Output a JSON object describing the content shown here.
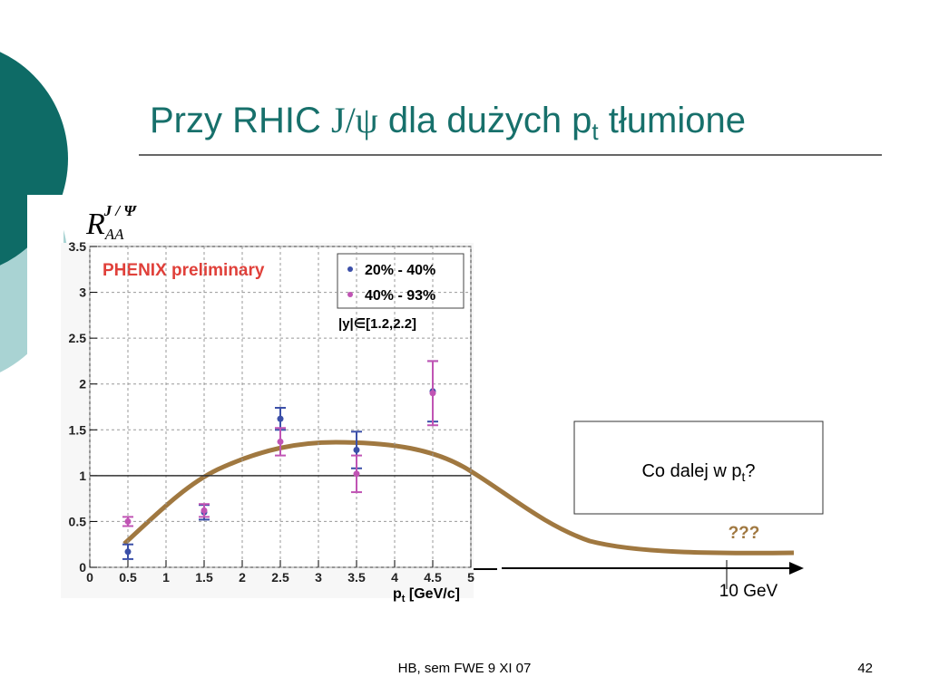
{
  "slide": {
    "title": {
      "a": "Przy RHIC ",
      "b": "J/ψ",
      "c": " dla dużych p",
      "d": "t",
      "e": " tłumione"
    },
    "box": {
      "a": "Co dalej w p",
      "b": "t",
      "c": "?"
    },
    "question": "???",
    "axis_note": "10 GeV",
    "footer": "HB, sem FWE 9 XI 07",
    "page": "42"
  },
  "chart_data": {
    "type": "scatter",
    "ylabel": {
      "main": "R",
      "sub": "AA",
      "sup": "J / Ψ"
    },
    "xlabel": {
      "main": "p",
      "sub": "t",
      "rest": " [GeV/c]"
    },
    "annotations": [
      "PHENIX preliminary",
      "|y|∈[1.2,2.2]"
    ],
    "x": [
      0.5,
      1.5,
      2.5,
      3.5,
      4.5
    ],
    "series": [
      {
        "name": "20% - 40%",
        "color": "#3b4fa8",
        "values": [
          0.17,
          0.6,
          1.62,
          1.28,
          1.92
        ],
        "errors": [
          0.08,
          0.08,
          0.12,
          0.2,
          0.33
        ]
      },
      {
        "name": "40% - 93%",
        "color": "#c054b4",
        "values": [
          0.5,
          0.62,
          1.37,
          1.02,
          1.9
        ],
        "errors": [
          0.05,
          0.07,
          0.15,
          0.2,
          0.35
        ]
      }
    ],
    "hline": 1,
    "xlim": [
      0,
      5
    ],
    "xticks": [
      0,
      0.5,
      1,
      1.5,
      2,
      2.5,
      3,
      3.5,
      4,
      4.5,
      5
    ],
    "ylim": [
      0,
      3.5
    ],
    "yticks": [
      0,
      0.5,
      1,
      1.5,
      2,
      2.5,
      3,
      3.5
    ],
    "grid": true
  }
}
